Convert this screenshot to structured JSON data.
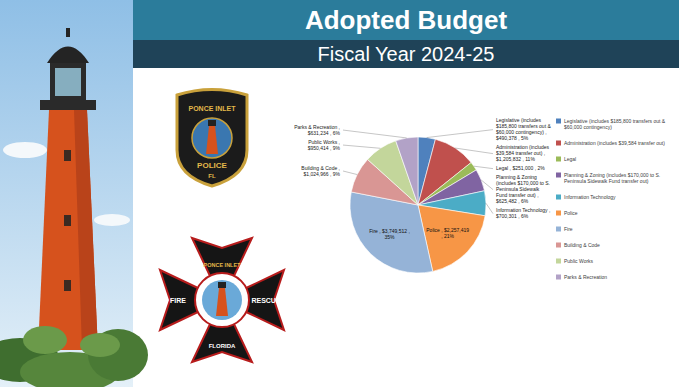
{
  "chart_data": {
    "type": "pie",
    "title": "Adopted Budget",
    "subtitle": "Fiscal Year 2024-25",
    "categories": [
      "Legislative (includes $185,800 transfers out & $60,000 contingency)",
      "Administration (includes $39,584 transfer out)",
      "Legal",
      "Planning & Zoning (includes $170,000 to S. Peninsula Sidewalk Fund transfer out)",
      "Information Technology",
      "Police",
      "Fire",
      "Building & Code",
      "Public Works",
      "Parks & Recreation"
    ],
    "values": [
      490378,
      1205832,
      251000,
      625482,
      700301,
      2257419,
      3749512,
      1024966,
      950414,
      631234
    ],
    "value_labels": [
      "Legislative (includes $185,800 transfers out & $60,000 contingency) , $490,378 , 5%",
      "Administration (includes $39,584 transfer out) , $1,205,832 , 11%",
      "Legal , $251,000 , 2%",
      "Planning & Zoning (includes $170,000 to S. Peninsula Sidewalk Fund transfer out) , $625,482 , 6%",
      "Information Technology , $700,301 , 6%",
      "Police , $2,257,419 , 21%",
      "Fire , $3,749,512 , 35%",
      "Building & Code , $1,024,966 , 9%",
      "Public Works , $950,414 , 9%",
      "Parks & Recreation , $631,234 , 6%"
    ],
    "colors": [
      "#4f81bd",
      "#c0504d",
      "#9bbb59",
      "#8064a2",
      "#4bacc6",
      "#f79646",
      "#95b3d7",
      "#d99694",
      "#c3d69b",
      "#b2a2c7"
    ],
    "data_labels": true,
    "legend": "right"
  },
  "police_badge": {
    "top": "PONCE INLET",
    "middle": "POLICE",
    "bottom": "FL"
  },
  "fire_badge": {
    "top": "PONCE INLET",
    "left": "FIRE",
    "right": "RESCUE",
    "bottom": "FLORIDA"
  }
}
